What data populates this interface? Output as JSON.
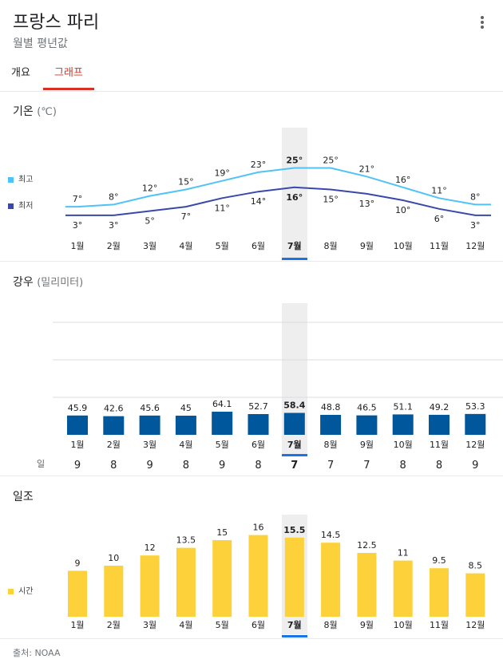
{
  "header": {
    "title": "프랑스 파리",
    "subtitle": "월별 평년값"
  },
  "tabs": [
    {
      "label": "개요",
      "active": false
    },
    {
      "label": "그래프",
      "active": true
    }
  ],
  "months": [
    "1월",
    "2월",
    "3월",
    "4월",
    "5월",
    "6월",
    "7월",
    "8월",
    "9월",
    "10월",
    "11월",
    "12월"
  ],
  "selected_month_index": 6,
  "temperature": {
    "title": "기온",
    "unit": "(℃)",
    "legend_high": "최고",
    "legend_low": "최저",
    "color_high": "#4fc3f7",
    "color_low": "#3949ab"
  },
  "rain": {
    "title": "강우",
    "unit": "(밀리미터)",
    "color": "#01579b",
    "days_label": "일"
  },
  "sun": {
    "title": "일조",
    "legend": "시간",
    "color": "#fdd13a"
  },
  "chart_data": [
    {
      "type": "line",
      "categories": [
        "1월",
        "2월",
        "3월",
        "4월",
        "5월",
        "6월",
        "7월",
        "8월",
        "9월",
        "10월",
        "11월",
        "12월"
      ],
      "series": [
        {
          "name": "최고",
          "values": [
            7,
            8,
            12,
            15,
            19,
            23,
            25,
            25,
            21,
            16,
            11,
            8
          ]
        },
        {
          "name": "최저",
          "values": [
            3,
            3,
            5,
            7,
            11,
            14,
            16,
            15,
            13,
            10,
            6,
            3
          ]
        }
      ],
      "title": "기온"
    },
    {
      "type": "bar",
      "categories": [
        "1월",
        "2월",
        "3월",
        "4월",
        "5월",
        "6월",
        "7월",
        "8월",
        "9월",
        "10월",
        "11월",
        "12월"
      ],
      "values": [
        45.9,
        42.6,
        45.6,
        45,
        64.1,
        52.7,
        58.4,
        48.8,
        46.5,
        51.1,
        49.2,
        53.3
      ],
      "days": [
        9,
        8,
        9,
        8,
        9,
        8,
        7,
        7,
        7,
        8,
        8,
        9
      ],
      "title": "강우"
    },
    {
      "type": "bar",
      "categories": [
        "1월",
        "2월",
        "3월",
        "4월",
        "5월",
        "6월",
        "7월",
        "8월",
        "9월",
        "10월",
        "11월",
        "12월"
      ],
      "values": [
        9,
        10,
        12,
        13.5,
        15,
        16,
        15.5,
        14.5,
        12.5,
        11,
        9.5,
        8.5
      ],
      "series_name": "시간",
      "title": "일조"
    }
  ],
  "footer": {
    "source": "출처: NOAA"
  }
}
